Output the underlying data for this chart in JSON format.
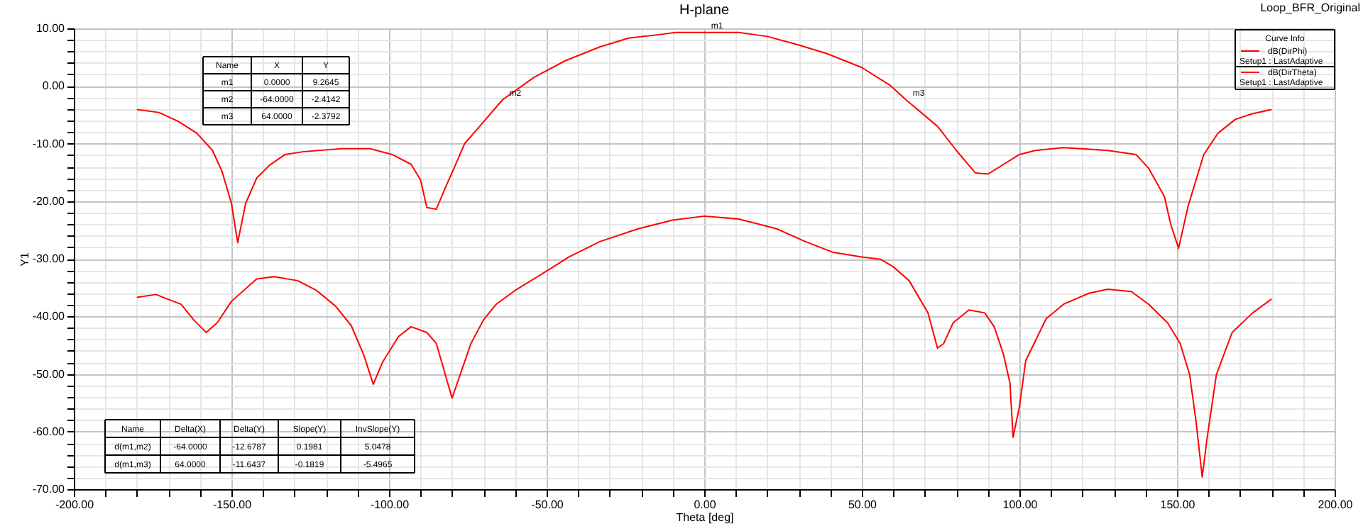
{
  "chart_data": {
    "type": "line",
    "title": "H-plane",
    "xlabel": "Theta [deg]",
    "ylabel": "Y1",
    "legend_title": "Curve Info",
    "xlim": [
      -200,
      200
    ],
    "ylim": [
      -70,
      10
    ],
    "xticks": [
      {
        "value": -200,
        "label": "-200.00"
      },
      {
        "value": -190,
        "label": null
      },
      {
        "value": -180,
        "label": null
      },
      {
        "value": -170,
        "label": null
      },
      {
        "value": -160,
        "label": null
      },
      {
        "value": -150,
        "label": "-150.00"
      },
      {
        "value": -140,
        "label": null
      },
      {
        "value": -130,
        "label": null
      },
      {
        "value": -120,
        "label": null
      },
      {
        "value": -110,
        "label": null
      },
      {
        "value": -100,
        "label": "-100.00"
      },
      {
        "value": -90,
        "label": null
      },
      {
        "value": -80,
        "label": null
      },
      {
        "value": -70,
        "label": null
      },
      {
        "value": -60,
        "label": null
      },
      {
        "value": -50,
        "label": "-50.00"
      },
      {
        "value": -40,
        "label": null
      },
      {
        "value": -30,
        "label": null
      },
      {
        "value": -20,
        "label": null
      },
      {
        "value": -10,
        "label": null
      },
      {
        "value": 0,
        "label": "0.00"
      },
      {
        "value": 10,
        "label": null
      },
      {
        "value": 20,
        "label": null
      },
      {
        "value": 30,
        "label": null
      },
      {
        "value": 40,
        "label": null
      },
      {
        "value": 50,
        "label": "50.00"
      },
      {
        "value": 60,
        "label": null
      },
      {
        "value": 70,
        "label": null
      },
      {
        "value": 80,
        "label": null
      },
      {
        "value": 90,
        "label": null
      },
      {
        "value": 100,
        "label": "100.00"
      },
      {
        "value": 110,
        "label": null
      },
      {
        "value": 120,
        "label": null
      },
      {
        "value": 130,
        "label": null
      },
      {
        "value": 140,
        "label": null
      },
      {
        "value": 150,
        "label": "150.00"
      },
      {
        "value": 160,
        "label": null
      },
      {
        "value": 170,
        "label": null
      },
      {
        "value": 180,
        "label": null
      },
      {
        "value": 190,
        "label": null
      },
      {
        "value": 200,
        "label": "200.00"
      }
    ],
    "yticks": [
      {
        "value": -70,
        "label": "-70.00"
      },
      {
        "value": -68,
        "label": null
      },
      {
        "value": -66,
        "label": null
      },
      {
        "value": -64,
        "label": null
      },
      {
        "value": -62,
        "label": null
      },
      {
        "value": -60,
        "label": "-60.00"
      },
      {
        "value": -58,
        "label": null
      },
      {
        "value": -56,
        "label": null
      },
      {
        "value": -54,
        "label": null
      },
      {
        "value": -52,
        "label": null
      },
      {
        "value": -50,
        "label": "-50.00"
      },
      {
        "value": -48,
        "label": null
      },
      {
        "value": -46,
        "label": null
      },
      {
        "value": -44,
        "label": null
      },
      {
        "value": -42,
        "label": null
      },
      {
        "value": -40,
        "label": "-40.00"
      },
      {
        "value": -38,
        "label": null
      },
      {
        "value": -36,
        "label": null
      },
      {
        "value": -34,
        "label": null
      },
      {
        "value": -32,
        "label": null
      },
      {
        "value": -30,
        "label": "-30.00"
      },
      {
        "value": -28,
        "label": null
      },
      {
        "value": -26,
        "label": null
      },
      {
        "value": -24,
        "label": null
      },
      {
        "value": -22,
        "label": null
      },
      {
        "value": -20,
        "label": "-20.00"
      },
      {
        "value": -18,
        "label": null
      },
      {
        "value": -16,
        "label": null
      },
      {
        "value": -14,
        "label": null
      },
      {
        "value": -12,
        "label": null
      },
      {
        "value": -10,
        "label": "-10.00"
      },
      {
        "value": -8,
        "label": null
      },
      {
        "value": -6,
        "label": null
      },
      {
        "value": -4,
        "label": null
      },
      {
        "value": -2,
        "label": null
      },
      {
        "value": 0,
        "label": "0.00"
      },
      {
        "value": 2,
        "label": null
      },
      {
        "value": 4,
        "label": null
      },
      {
        "value": 6,
        "label": null
      },
      {
        "value": 8,
        "label": null
      },
      {
        "value": 10,
        "label": "10.00"
      }
    ],
    "grid": true,
    "legend": "top right",
    "line_style": "solid",
    "series": [
      {
        "name": "dB(DirPhi)",
        "color": "#ff0000",
        "x": [
          -180,
          -173,
          -167,
          -161,
          -156,
          -153,
          -150,
          -148,
          -145.5,
          -142,
          -138,
          -133,
          -127,
          -115,
          -106,
          -99,
          -93,
          -90,
          -88,
          -85,
          -82,
          -79,
          -76,
          -72,
          -64,
          -54,
          -44,
          -33,
          -24,
          -13,
          -9,
          0,
          11,
          20,
          30,
          39,
          50,
          59,
          64,
          74,
          80,
          86,
          90,
          95,
          100,
          105,
          114,
          128,
          137,
          141,
          146,
          148,
          150.5,
          153.5,
          158.5,
          163,
          168.5,
          174,
          180
        ],
        "values": [
          -4.1,
          -4.6,
          -6.1,
          -8.2,
          -11.2,
          -14.8,
          -20.4,
          -27.2,
          -20.4,
          -16,
          -13.8,
          -11.9,
          -11.4,
          -10.9,
          -10.9,
          -11.9,
          -13.6,
          -16.3,
          -21.1,
          -21.4,
          -17.5,
          -13.8,
          -10,
          -7.5,
          -2.4,
          1.5,
          4.4,
          6.8,
          8.3,
          9.0,
          9.3,
          9.3,
          9.3,
          8.6,
          7.1,
          5.6,
          3.2,
          0.1,
          -2.4,
          -7,
          -11.2,
          -15.1,
          -15.3,
          -13.6,
          -11.9,
          -11.2,
          -10.7,
          -11.2,
          -11.9,
          -14.3,
          -19.2,
          -24,
          -28.2,
          -20.9,
          -11.9,
          -8.2,
          -5.8,
          -4.8,
          -4.1
        ]
      },
      {
        "name": "dB(DirTheta)",
        "color": "#ff0000",
        "x": [
          -180,
          -174,
          -166,
          -162,
          -158,
          -154.5,
          -150,
          -142,
          -136.5,
          -129,
          -123,
          -117,
          -112,
          -108,
          -105,
          -102,
          -97,
          -93,
          -88,
          -85,
          -80,
          -74,
          -70,
          -66,
          -60,
          -49,
          -43,
          -33,
          -21,
          -10,
          0,
          11,
          23,
          32,
          41,
          50,
          56,
          60,
          65,
          71,
          74,
          76,
          79,
          84,
          89,
          92,
          95,
          97,
          98,
          100,
          102,
          108.5,
          114,
          122,
          128,
          135.5,
          141,
          147,
          151,
          154,
          156,
          158,
          159.5,
          162.5,
          167.5,
          174,
          180
        ],
        "values": [
          -36.7,
          -36.2,
          -37.9,
          -40.6,
          -42.8,
          -41.1,
          -37.4,
          -33.5,
          -33.1,
          -33.8,
          -35.5,
          -38.2,
          -41.6,
          -46.7,
          -51.8,
          -47.9,
          -43.5,
          -41.8,
          -42.8,
          -44.7,
          -54.2,
          -44.7,
          -40.6,
          -37.9,
          -35.5,
          -31.8,
          -29.7,
          -27,
          -24.8,
          -23.3,
          -22.6,
          -23.1,
          -24.8,
          -27,
          -28.9,
          -29.7,
          -30.1,
          -31.4,
          -33.8,
          -39.4,
          -45.5,
          -44.7,
          -41.1,
          -38.9,
          -39.4,
          -41.8,
          -46.7,
          -51.6,
          -61,
          -55.7,
          -47.7,
          -40.4,
          -37.9,
          -36,
          -35.3,
          -35.7,
          -37.9,
          -41.1,
          -44.7,
          -50.1,
          -58.1,
          -67.9,
          -61.3,
          -50.1,
          -42.8,
          -39.4,
          -37
        ]
      }
    ],
    "annotations": [
      "Loop_BFR_Original",
      "Name",
      "X",
      "Y",
      "m1",
      "0.0000",
      "9.2645",
      "m2",
      "-64.0000",
      "-2.4142",
      "m3",
      "64.0000",
      "-2.3792",
      "Name",
      "Delta(X)",
      "Delta(Y)",
      "Slope(Y)",
      "InvSlope(Y)",
      "d(m1,m2)",
      "-64.0000",
      "-12.6787",
      "0.1981",
      "5.0478",
      "d(m1,m3)",
      "64.0000",
      "-11.6437",
      "-0.1819",
      "-5.4965",
      "Setup1 : LastAdaptive",
      "Setup1 : LastAdaptive",
      {
        "text": "m1",
        "x": 0,
        "y": 9.2645
      },
      {
        "text": "m2",
        "x": -64,
        "y": -2.4142
      },
      {
        "text": "m3",
        "x": 64,
        "y": -2.3792
      }
    ]
  }
}
